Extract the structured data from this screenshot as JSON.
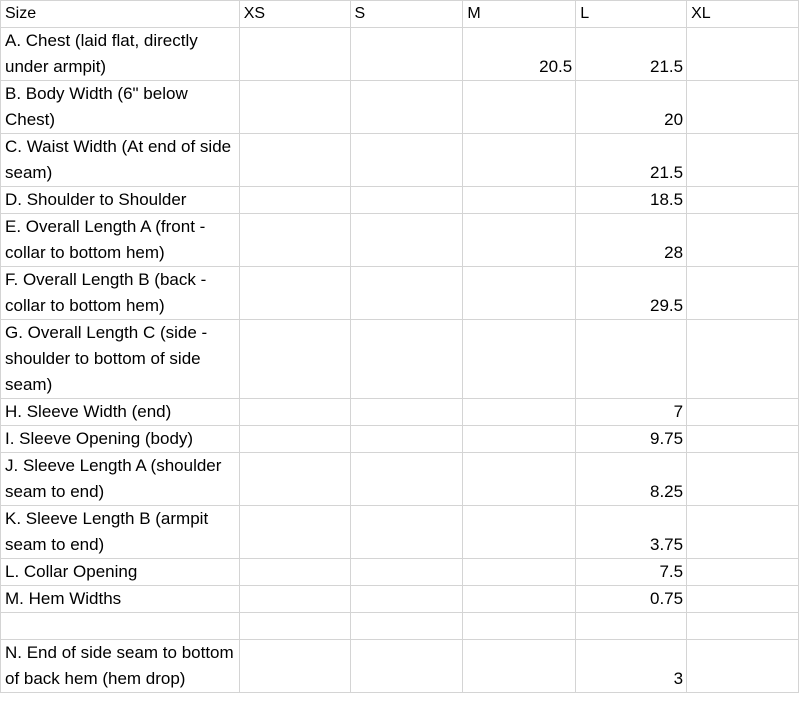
{
  "header": {
    "size_label": "Size",
    "sizes": [
      "XS",
      "S",
      "M",
      "L",
      "XL"
    ]
  },
  "rows": [
    {
      "label": "A. Chest (laid flat, directly under armpit)",
      "values": [
        "",
        "",
        "20.5",
        "21.5",
        ""
      ]
    },
    {
      "label": "B. Body Width (6\" below Chest)",
      "values": [
        "",
        "",
        "",
        "20",
        ""
      ]
    },
    {
      "label": "C. Waist Width (At end of side seam)",
      "values": [
        "",
        "",
        "",
        "21.5",
        ""
      ]
    },
    {
      "label": "D. Shoulder to Shoulder",
      "values": [
        "",
        "",
        "",
        "18.5",
        ""
      ]
    },
    {
      "label": "E. Overall Length A (front - collar to bottom hem)",
      "values": [
        "",
        "",
        "",
        "28",
        ""
      ]
    },
    {
      "label": "F. Overall Length B (back - collar to bottom hem)",
      "values": [
        "",
        "",
        "",
        "29.5",
        ""
      ]
    },
    {
      "label": "G. Overall Length C (side - shoulder to bottom of side seam)",
      "values": [
        "",
        "",
        "",
        "",
        ""
      ]
    },
    {
      "label": "H. Sleeve Width (end)",
      "values": [
        "",
        "",
        "",
        "7",
        ""
      ]
    },
    {
      "label": "I. Sleeve Opening (body)",
      "values": [
        "",
        "",
        "",
        "9.75",
        ""
      ]
    },
    {
      "label": "J. Sleeve Length A (shoulder seam to end)",
      "values": [
        "",
        "",
        "",
        "8.25",
        ""
      ]
    },
    {
      "label": "K. Sleeve Length B (armpit seam to end)",
      "values": [
        "",
        "",
        "",
        "3.75",
        ""
      ]
    },
    {
      "label": "L. Collar Opening",
      "values": [
        "",
        "",
        "",
        "7.5",
        ""
      ]
    },
    {
      "label": "M. Hem Widths",
      "values": [
        "",
        "",
        "",
        "0.75",
        ""
      ]
    },
    {
      "label": "",
      "values": [
        "",
        "",
        "",
        "",
        ""
      ]
    },
    {
      "label": "N. End of side seam to bottom of back hem (hem drop)",
      "values": [
        "",
        "",
        "",
        "3",
        ""
      ]
    }
  ]
}
